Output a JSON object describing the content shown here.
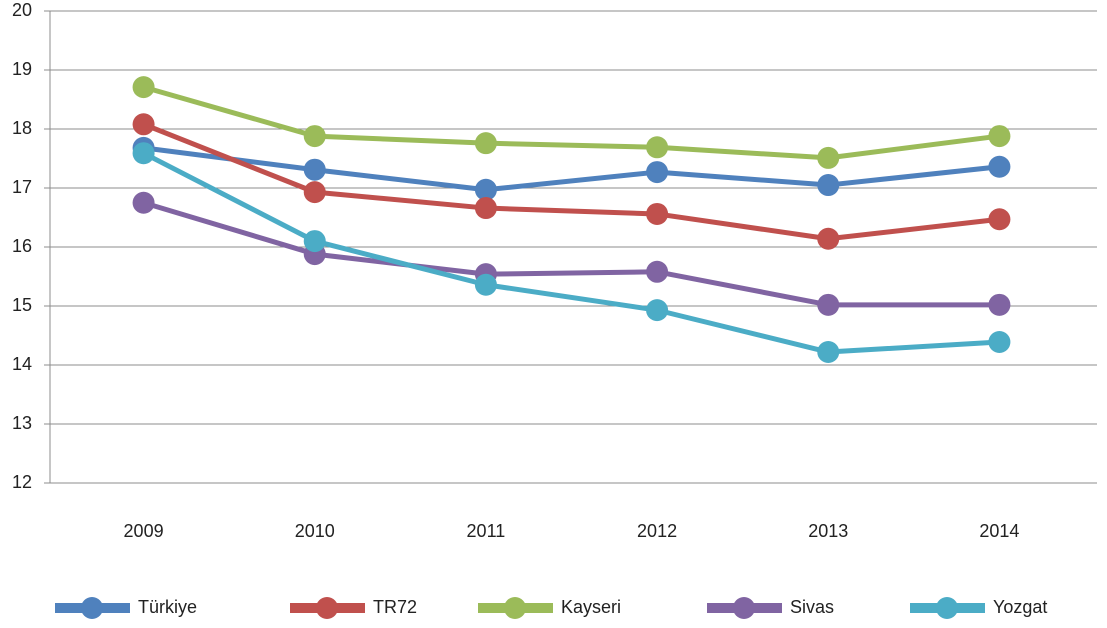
{
  "chart_data": {
    "type": "line",
    "categories": [
      "2009",
      "2010",
      "2011",
      "2012",
      "2013",
      "2014"
    ],
    "ylim": [
      12,
      20
    ],
    "yticks": [
      12,
      13,
      14,
      15,
      16,
      17,
      18,
      19,
      20
    ],
    "grid": true,
    "legend": "bottom",
    "series": [
      {
        "name": "Türkiye",
        "color": "#4f81bd",
        "values": [
          17.68,
          17.31,
          16.97,
          17.27,
          17.05,
          17.36
        ]
      },
      {
        "name": "TR72",
        "color": "#c0504d",
        "values": [
          18.08,
          16.93,
          16.66,
          16.56,
          16.14,
          16.47
        ]
      },
      {
        "name": "Kayseri",
        "color": "#9bbb59",
        "values": [
          18.71,
          17.88,
          17.76,
          17.69,
          17.51,
          17.88
        ]
      },
      {
        "name": "Sivas",
        "color": "#8064a2",
        "values": [
          16.75,
          15.88,
          15.54,
          15.58,
          15.02,
          15.02
        ]
      },
      {
        "name": "Yozgat",
        "color": "#4bacc6",
        "values": [
          17.59,
          16.1,
          15.36,
          14.93,
          14.22,
          14.39
        ]
      }
    ]
  }
}
